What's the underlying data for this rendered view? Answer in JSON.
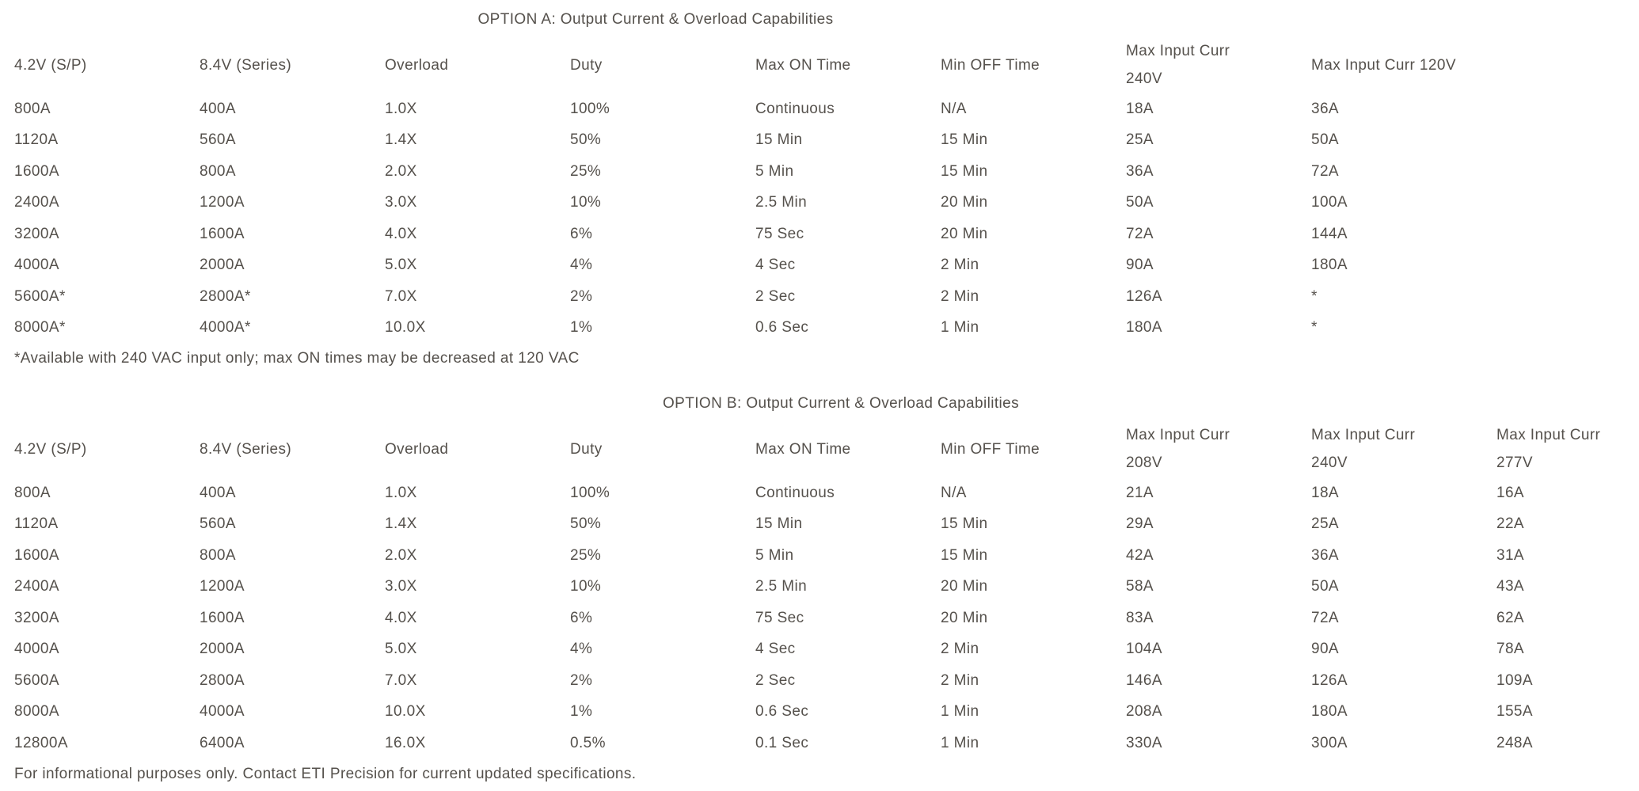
{
  "theme": {
    "text_color": "#55514c",
    "background": "#ffffff"
  },
  "tables": [
    {
      "title": "OPTION A: Output Current & Overload Capabilities",
      "columns": [
        "4.2V (S/P)",
        "8.4V (Series)",
        "Overload",
        "Duty",
        "Max ON Time",
        "Min OFF Time",
        "Max Input Curr\n240V",
        "Max Input Curr 120V"
      ],
      "rows": [
        [
          "800A",
          "400A",
          "1.0X",
          "100%",
          "Continuous",
          "N/A",
          "18A",
          "36A"
        ],
        [
          "1120A",
          "560A",
          "1.4X",
          "50%",
          "15 Min",
          "15 Min",
          "25A",
          "50A"
        ],
        [
          "1600A",
          "800A",
          "2.0X",
          "25%",
          "5 Min",
          "15 Min",
          "36A",
          "72A"
        ],
        [
          "2400A",
          "1200A",
          "3.0X",
          "10%",
          "2.5 Min",
          "20 Min",
          "50A",
          "100A"
        ],
        [
          "3200A",
          "1600A",
          "4.0X",
          "6%",
          "75 Sec",
          "20 Min",
          "72A",
          "144A"
        ],
        [
          "4000A",
          "2000A",
          "5.0X",
          "4%",
          "4 Sec",
          "2 Min",
          "90A",
          "180A"
        ],
        [
          "5600A*",
          "2800A*",
          "7.0X",
          "2%",
          "2 Sec",
          "2 Min",
          "126A",
          "*"
        ],
        [
          "8000A*",
          "4000A*",
          "10.0X",
          "1%",
          "0.6 Sec",
          "1 Min",
          "180A",
          "*"
        ]
      ],
      "footnote": "*Available with 240 VAC input only; max ON times may be decreased at 120 VAC"
    },
    {
      "title": "OPTION B: Output Current & Overload Capabilities",
      "columns": [
        "4.2V (S/P)",
        "8.4V (Series)",
        "Overload",
        "Duty",
        "Max ON Time",
        "Min OFF Time",
        "Max Input Curr\n208V",
        "Max Input Curr\n240V",
        "Max Input Curr\n277V"
      ],
      "rows": [
        [
          "800A",
          "400A",
          "1.0X",
          "100%",
          "Continuous",
          "N/A",
          "21A",
          "18A",
          "16A"
        ],
        [
          "1120A",
          "560A",
          "1.4X",
          "50%",
          "15 Min",
          "15 Min",
          "29A",
          "25A",
          "22A"
        ],
        [
          "1600A",
          "800A",
          "2.0X",
          "25%",
          "5 Min",
          "15 Min",
          "42A",
          "36A",
          "31A"
        ],
        [
          "2400A",
          "1200A",
          "3.0X",
          "10%",
          "2.5 Min",
          "20 Min",
          "58A",
          "50A",
          "43A"
        ],
        [
          "3200A",
          "1600A",
          "4.0X",
          "6%",
          "75 Sec",
          "20 Min",
          "83A",
          "72A",
          "62A"
        ],
        [
          "4000A",
          "2000A",
          "5.0X",
          "4%",
          "4 Sec",
          "2 Min",
          "104A",
          "90A",
          "78A"
        ],
        [
          "5600A",
          "2800A",
          "7.0X",
          "2%",
          "2 Sec",
          "2 Min",
          "146A",
          "126A",
          "109A"
        ],
        [
          "8000A",
          "4000A",
          "10.0X",
          "1%",
          "0.6 Sec",
          "1 Min",
          "208A",
          "180A",
          "155A"
        ],
        [
          "12800A",
          "6400A",
          "16.0X",
          "0.5%",
          "0.1 Sec",
          "1 Min",
          "330A",
          "300A",
          "248A"
        ]
      ],
      "footnote": "For informational purposes only. Contact ETI Precision for current updated specifications."
    }
  ]
}
